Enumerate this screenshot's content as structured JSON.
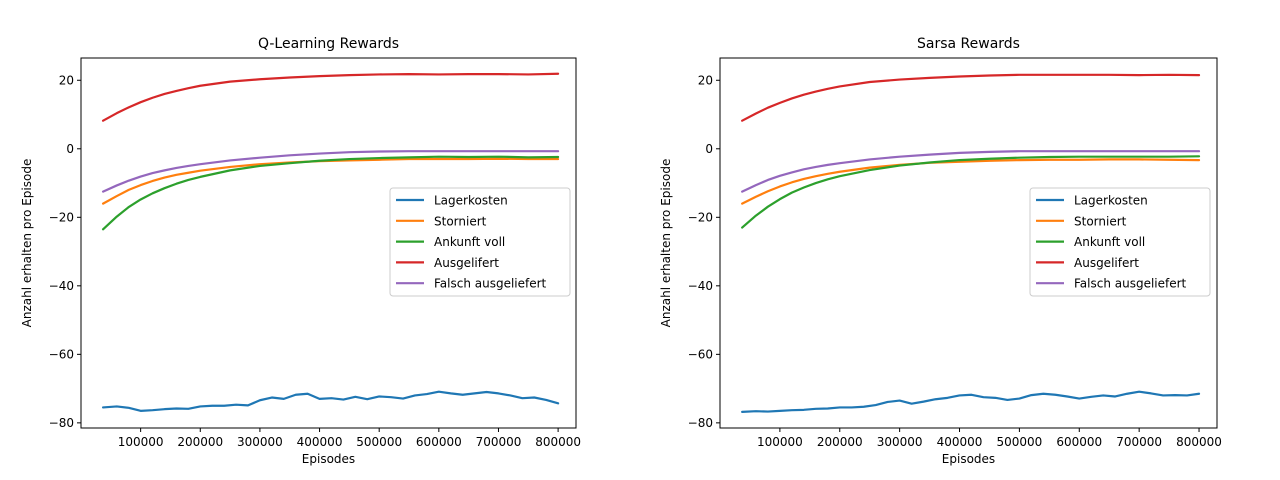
{
  "chart_data": [
    {
      "type": "line",
      "title": "Q-Learning Rewards",
      "xlabel": "Episodes",
      "ylabel": "Anzahl erhalten pro Episode",
      "xlim": [
        0,
        830000
      ],
      "ylim": [
        -81.5,
        26.5
      ],
      "xticks": [
        100000,
        200000,
        300000,
        400000,
        500000,
        600000,
        700000,
        800000
      ],
      "yticks": [
        20,
        0,
        -20,
        -40,
        -60,
        -80
      ],
      "legend": "center-right",
      "series": [
        {
          "name": "Lagerkosten",
          "color": "#1f77b4",
          "x": [
            37000,
            60000,
            80000,
            100000,
            120000,
            140000,
            160000,
            180000,
            200000,
            220000,
            240000,
            260000,
            280000,
            300000,
            320000,
            340000,
            360000,
            380000,
            400000,
            420000,
            440000,
            460000,
            480000,
            500000,
            520000,
            540000,
            560000,
            580000,
            600000,
            620000,
            640000,
            660000,
            680000,
            700000,
            720000,
            740000,
            760000,
            780000,
            800000
          ],
          "y": [
            -75.5,
            -75.2,
            -75.6,
            -76.5,
            -76.3,
            -76.0,
            -75.8,
            -75.9,
            -75.2,
            -75.0,
            -75.0,
            -74.7,
            -74.9,
            -73.4,
            -72.6,
            -73.0,
            -71.8,
            -71.5,
            -73.0,
            -72.8,
            -73.2,
            -72.4,
            -73.1,
            -72.3,
            -72.5,
            -72.9,
            -72.0,
            -71.6,
            -70.9,
            -71.4,
            -71.8,
            -71.4,
            -71.0,
            -71.4,
            -72.0,
            -72.8,
            -72.6,
            -73.3,
            -74.3
          ]
        },
        {
          "name": "Storniert",
          "color": "#ff7f0e",
          "x": [
            37000,
            60000,
            80000,
            100000,
            120000,
            140000,
            160000,
            180000,
            200000,
            250000,
            300000,
            350000,
            400000,
            450000,
            500000,
            550000,
            600000,
            650000,
            700000,
            750000,
            800000
          ],
          "y": [
            -16.0,
            -13.8,
            -12.0,
            -10.6,
            -9.4,
            -8.4,
            -7.6,
            -7.0,
            -6.4,
            -5.3,
            -4.5,
            -4.0,
            -3.6,
            -3.4,
            -3.2,
            -3.0,
            -3.0,
            -3.0,
            -2.9,
            -3.0,
            -3.0
          ]
        },
        {
          "name": "Ankunft voll",
          "color": "#2ca02c",
          "x": [
            37000,
            60000,
            80000,
            100000,
            120000,
            140000,
            160000,
            180000,
            200000,
            250000,
            300000,
            350000,
            400000,
            450000,
            500000,
            550000,
            600000,
            650000,
            700000,
            750000,
            800000
          ],
          "y": [
            -23.5,
            -19.8,
            -17.0,
            -14.8,
            -13.0,
            -11.5,
            -10.2,
            -9.1,
            -8.2,
            -6.3,
            -5.0,
            -4.2,
            -3.5,
            -3.0,
            -2.7,
            -2.5,
            -2.3,
            -2.4,
            -2.3,
            -2.5,
            -2.4
          ]
        },
        {
          "name": "Ausgelifert",
          "color": "#d62728",
          "x": [
            37000,
            60000,
            80000,
            100000,
            120000,
            140000,
            160000,
            180000,
            200000,
            250000,
            300000,
            350000,
            400000,
            450000,
            500000,
            550000,
            600000,
            650000,
            700000,
            750000,
            800000
          ],
          "y": [
            8.2,
            10.4,
            12.1,
            13.6,
            14.9,
            16.0,
            16.9,
            17.7,
            18.4,
            19.6,
            20.3,
            20.8,
            21.2,
            21.5,
            21.7,
            21.8,
            21.7,
            21.8,
            21.8,
            21.7,
            21.9
          ]
        },
        {
          "name": "Falsch ausgeliefert",
          "color": "#9467bd",
          "x": [
            37000,
            60000,
            80000,
            100000,
            120000,
            140000,
            160000,
            180000,
            200000,
            250000,
            300000,
            350000,
            400000,
            450000,
            500000,
            550000,
            600000,
            650000,
            700000,
            750000,
            800000
          ],
          "y": [
            -12.5,
            -10.7,
            -9.3,
            -8.1,
            -7.1,
            -6.3,
            -5.6,
            -5.0,
            -4.5,
            -3.4,
            -2.6,
            -1.9,
            -1.4,
            -1.0,
            -0.8,
            -0.7,
            -0.7,
            -0.7,
            -0.7,
            -0.7,
            -0.7
          ]
        }
      ]
    },
    {
      "type": "line",
      "title": "Sarsa Rewards",
      "xlabel": "Episodes",
      "ylabel": "Anzahl erhalten pro Episode",
      "xlim": [
        0,
        830000
      ],
      "ylim": [
        -81.5,
        26.5
      ],
      "xticks": [
        100000,
        200000,
        300000,
        400000,
        500000,
        600000,
        700000,
        800000
      ],
      "yticks": [
        20,
        0,
        -20,
        -40,
        -60,
        -80
      ],
      "legend": "center-right",
      "series": [
        {
          "name": "Lagerkosten",
          "color": "#1f77b4",
          "x": [
            37000,
            60000,
            80000,
            100000,
            120000,
            140000,
            160000,
            180000,
            200000,
            220000,
            240000,
            260000,
            280000,
            300000,
            320000,
            340000,
            360000,
            380000,
            400000,
            420000,
            440000,
            460000,
            480000,
            500000,
            520000,
            540000,
            560000,
            580000,
            600000,
            620000,
            640000,
            660000,
            680000,
            700000,
            720000,
            740000,
            760000,
            780000,
            800000
          ],
          "y": [
            -76.8,
            -76.6,
            -76.7,
            -76.5,
            -76.3,
            -76.2,
            -75.9,
            -75.8,
            -75.5,
            -75.5,
            -75.3,
            -74.8,
            -73.9,
            -73.5,
            -74.4,
            -73.8,
            -73.1,
            -72.7,
            -72.0,
            -71.8,
            -72.5,
            -72.7,
            -73.3,
            -72.9,
            -71.9,
            -71.5,
            -71.8,
            -72.3,
            -72.9,
            -72.4,
            -72.0,
            -72.3,
            -71.5,
            -70.9,
            -71.4,
            -72.0,
            -71.9,
            -72.0,
            -71.5
          ]
        },
        {
          "name": "Storniert",
          "color": "#ff7f0e",
          "x": [
            37000,
            60000,
            80000,
            100000,
            120000,
            140000,
            160000,
            180000,
            200000,
            250000,
            300000,
            350000,
            400000,
            450000,
            500000,
            550000,
            600000,
            650000,
            700000,
            750000,
            800000
          ],
          "y": [
            -16.0,
            -14.0,
            -12.4,
            -11.0,
            -9.8,
            -8.8,
            -8.0,
            -7.3,
            -6.7,
            -5.5,
            -4.7,
            -4.1,
            -3.8,
            -3.5,
            -3.3,
            -3.2,
            -3.2,
            -3.1,
            -3.1,
            -3.2,
            -3.3
          ]
        },
        {
          "name": "Ankunft voll",
          "color": "#2ca02c",
          "x": [
            37000,
            60000,
            80000,
            100000,
            120000,
            140000,
            160000,
            180000,
            200000,
            250000,
            300000,
            350000,
            400000,
            450000,
            500000,
            550000,
            600000,
            650000,
            700000,
            750000,
            800000
          ],
          "y": [
            -23.0,
            -19.5,
            -16.9,
            -14.7,
            -12.8,
            -11.3,
            -10.0,
            -8.9,
            -8.0,
            -6.2,
            -4.9,
            -4.0,
            -3.3,
            -2.9,
            -2.6,
            -2.4,
            -2.3,
            -2.3,
            -2.3,
            -2.3,
            -2.2
          ]
        },
        {
          "name": "Ausgelifert",
          "color": "#d62728",
          "x": [
            37000,
            60000,
            80000,
            100000,
            120000,
            140000,
            160000,
            180000,
            200000,
            250000,
            300000,
            350000,
            400000,
            450000,
            500000,
            550000,
            600000,
            650000,
            700000,
            750000,
            800000
          ],
          "y": [
            8.2,
            10.3,
            12.0,
            13.4,
            14.7,
            15.8,
            16.7,
            17.5,
            18.2,
            19.5,
            20.2,
            20.7,
            21.1,
            21.4,
            21.6,
            21.6,
            21.6,
            21.6,
            21.5,
            21.6,
            21.5
          ]
        },
        {
          "name": "Falsch ausgeliefert",
          "color": "#9467bd",
          "x": [
            37000,
            60000,
            80000,
            100000,
            120000,
            140000,
            160000,
            180000,
            200000,
            250000,
            300000,
            350000,
            400000,
            450000,
            500000,
            550000,
            600000,
            650000,
            700000,
            750000,
            800000
          ],
          "y": [
            -12.5,
            -10.6,
            -9.1,
            -7.9,
            -6.9,
            -6.0,
            -5.3,
            -4.7,
            -4.2,
            -3.1,
            -2.3,
            -1.7,
            -1.2,
            -0.9,
            -0.7,
            -0.7,
            -0.7,
            -0.7,
            -0.7,
            -0.7,
            -0.7
          ]
        }
      ]
    }
  ]
}
